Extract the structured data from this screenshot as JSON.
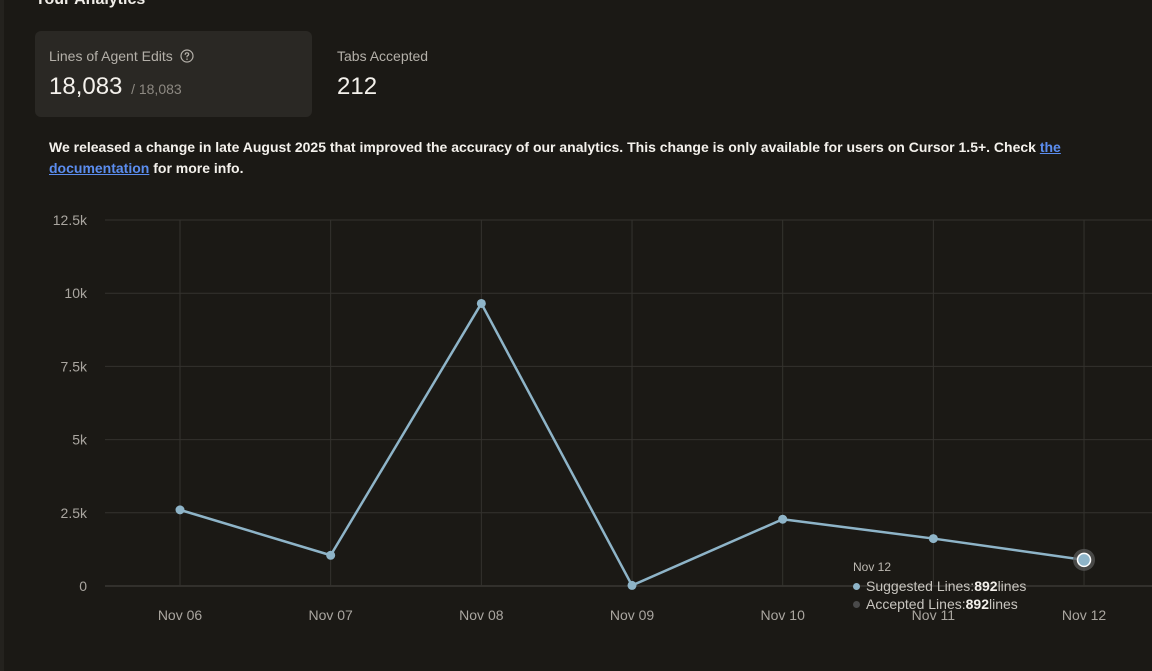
{
  "section_title": "Your Analytics",
  "stats": [
    {
      "label": "Lines of Agent Edits",
      "value": "18,083",
      "total": "/ 18,083",
      "has_help": true
    },
    {
      "label": "Tabs Accepted",
      "value": "212"
    }
  ],
  "notice": {
    "text_before": "We released a change in late August 2025 that improved the accuracy of our analytics. This change is only available for users on Cursor 1.5+. Check ",
    "link_text": "the documentation",
    "text_after": " for more info."
  },
  "colors": {
    "suggested": "#8eb4c8",
    "accepted": "#4a4a4a",
    "link": "#5b8def"
  },
  "chart_data": {
    "type": "line",
    "categories": [
      "Nov 06",
      "Nov 07",
      "Nov 08",
      "Nov 09",
      "Nov 10",
      "Nov 11",
      "Nov 12"
    ],
    "series": [
      {
        "name": "Suggested Lines",
        "values": [
          2600,
          1050,
          9650,
          20,
          2280,
          1620,
          892
        ]
      }
    ],
    "y_ticks": [
      0,
      2500,
      5000,
      7500,
      10000,
      12500
    ],
    "y_tick_labels": [
      "0",
      "2.5k",
      "5k",
      "7.5k",
      "10k",
      "12.5k"
    ],
    "ylim": [
      0,
      12500
    ],
    "grid": true,
    "highlight_index": 6
  },
  "tooltip": {
    "date": "Nov 12",
    "rows": [
      {
        "label": "Suggested Lines: ",
        "value": "892",
        "unit": " lines",
        "color": "#8eb4c8"
      },
      {
        "label": "Accepted Lines: ",
        "value": "892",
        "unit": " lines",
        "color": "#4a4a4a"
      }
    ]
  }
}
